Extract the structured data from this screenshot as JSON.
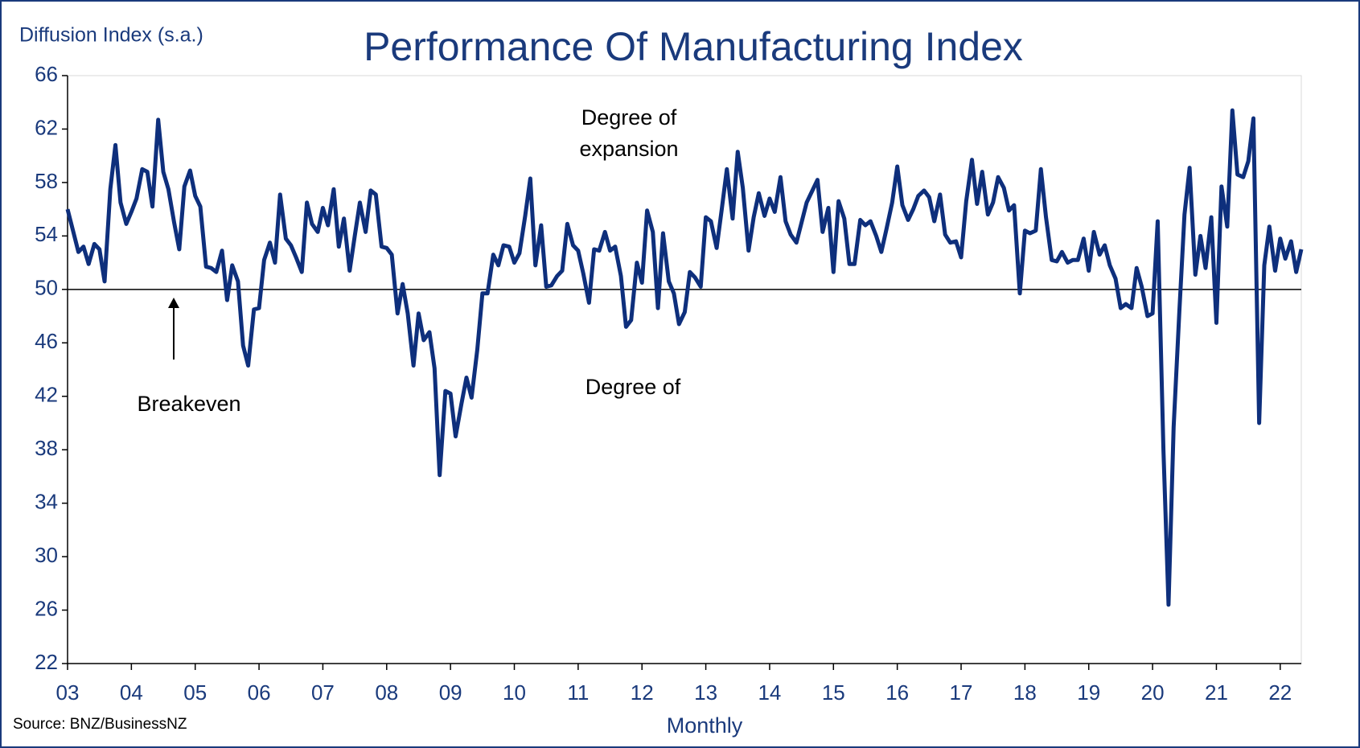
{
  "chart_data": {
    "type": "line",
    "title": "Performance Of Manufacturing Index",
    "y_label": "Diffusion Index (s.a.)",
    "x_label": "Monthly",
    "source": "Source: BNZ/BusinessNZ",
    "annotations": [
      "Degree of",
      "expansion",
      "Degree of",
      "Breakeven"
    ],
    "hline": 50,
    "xlim": [
      2003,
      2022.33
    ],
    "ylim": [
      22,
      66
    ],
    "yticks": [
      22,
      26,
      30,
      34,
      38,
      42,
      46,
      50,
      54,
      58,
      62,
      66
    ],
    "xticks": [
      {
        "value": 2003,
        "label": "03"
      },
      {
        "value": 2004,
        "label": "04"
      },
      {
        "value": 2005,
        "label": "05"
      },
      {
        "value": 2006,
        "label": "06"
      },
      {
        "value": 2007,
        "label": "07"
      },
      {
        "value": 2008,
        "label": "08"
      },
      {
        "value": 2009,
        "label": "09"
      },
      {
        "value": 2010,
        "label": "10"
      },
      {
        "value": 2011,
        "label": "11"
      },
      {
        "value": 2012,
        "label": "12"
      },
      {
        "value": 2013,
        "label": "13"
      },
      {
        "value": 2014,
        "label": "14"
      },
      {
        "value": 2015,
        "label": "15"
      },
      {
        "value": 2016,
        "label": "16"
      },
      {
        "value": 2017,
        "label": "17"
      },
      {
        "value": 2018,
        "label": "18"
      },
      {
        "value": 2019,
        "label": "19"
      },
      {
        "value": 2020,
        "label": "20"
      },
      {
        "value": 2021,
        "label": "21"
      },
      {
        "value": 2022,
        "label": "22"
      }
    ],
    "x": [
      2003,
      2003.08,
      2003.17,
      2003.25,
      2003.33,
      2003.42,
      2003.5,
      2003.58,
      2003.67,
      2003.75,
      2003.83,
      2003.92,
      2004,
      2004.08,
      2004.17,
      2004.25,
      2004.33,
      2004.42,
      2004.5,
      2004.58,
      2004.67,
      2004.75,
      2004.83,
      2004.92,
      2005,
      2005.08,
      2005.17,
      2005.25,
      2005.33,
      2005.42,
      2005.5,
      2005.58,
      2005.67,
      2005.75,
      2005.83,
      2005.92,
      2006,
      2006.08,
      2006.17,
      2006.25,
      2006.33,
      2006.42,
      2006.5,
      2006.58,
      2006.67,
      2006.75,
      2006.83,
      2006.92,
      2007,
      2007.08,
      2007.17,
      2007.25,
      2007.33,
      2007.42,
      2007.5,
      2007.58,
      2007.67,
      2007.75,
      2007.83,
      2007.92,
      2008,
      2008.08,
      2008.17,
      2008.25,
      2008.33,
      2008.42,
      2008.5,
      2008.58,
      2008.67,
      2008.75,
      2008.83,
      2008.92,
      2009,
      2009.08,
      2009.17,
      2009.25,
      2009.33,
      2009.42,
      2009.5,
      2009.58,
      2009.67,
      2009.75,
      2009.83,
      2009.92,
      2010,
      2010.08,
      2010.17,
      2010.25,
      2010.33,
      2010.42,
      2010.5,
      2010.58,
      2010.67,
      2010.75,
      2010.83,
      2010.92,
      2011,
      2011.08,
      2011.17,
      2011.25,
      2011.33,
      2011.42,
      2011.5,
      2011.58,
      2011.67,
      2011.75,
      2011.83,
      2011.92,
      2012,
      2012.08,
      2012.17,
      2012.25,
      2012.33,
      2012.42,
      2012.5,
      2012.58,
      2012.67,
      2012.75,
      2012.83,
      2012.92,
      2013,
      2013.08,
      2013.17,
      2013.25,
      2013.33,
      2013.42,
      2013.5,
      2013.58,
      2013.67,
      2013.75,
      2013.83,
      2013.92,
      2014,
      2014.08,
      2014.17,
      2014.25,
      2014.33,
      2014.42,
      2014.5,
      2014.58,
      2014.67,
      2014.75,
      2014.83,
      2014.92,
      2015,
      2015.08,
      2015.17,
      2015.25,
      2015.33,
      2015.42,
      2015.5,
      2015.58,
      2015.67,
      2015.75,
      2015.83,
      2015.92,
      2016,
      2016.08,
      2016.17,
      2016.25,
      2016.33,
      2016.42,
      2016.5,
      2016.58,
      2016.67,
      2016.75,
      2016.83,
      2016.92,
      2017,
      2017.08,
      2017.17,
      2017.25,
      2017.33,
      2017.42,
      2017.5,
      2017.58,
      2017.67,
      2017.75,
      2017.83,
      2017.92,
      2018,
      2018.08,
      2018.17,
      2018.25,
      2018.33,
      2018.42,
      2018.5,
      2018.58,
      2018.67,
      2018.75,
      2018.83,
      2018.92,
      2019,
      2019.08,
      2019.17,
      2019.25,
      2019.33,
      2019.42,
      2019.5,
      2019.58,
      2019.67,
      2019.75,
      2019.83,
      2019.92,
      2020,
      2020.08,
      2020.17,
      2020.25,
      2020.33,
      2020.42,
      2020.5,
      2020.58,
      2020.67,
      2020.75,
      2020.83,
      2020.92,
      2021,
      2021.08,
      2021.17,
      2021.25,
      2021.33,
      2021.42,
      2021.5,
      2021.58,
      2021.67,
      2021.75,
      2021.83,
      2021.92,
      2022,
      2022.08,
      2022.17,
      2022.25,
      2022.33
    ],
    "series": [
      {
        "color": "#0e2f7c",
        "values": [
          56,
          54.5,
          52.8,
          53.2,
          51.9,
          53.4,
          53,
          50.6,
          57.5,
          60.8,
          56.5,
          54.9,
          55.8,
          56.8,
          59,
          58.8,
          56.2,
          62.7,
          58.8,
          57.5,
          55,
          53,
          57.7,
          58.9,
          57,
          56.2,
          51.7,
          51.6,
          51.3,
          52.9,
          49.2,
          51.8,
          50.6,
          45.8,
          44.3,
          48.5,
          48.6,
          52.2,
          53.5,
          52,
          57.1,
          53.8,
          53.3,
          52.4,
          51.3,
          56.5,
          54.9,
          54.3,
          56.1,
          54.8,
          57.5,
          53.2,
          55.3,
          51.4,
          54,
          56.5,
          54.3,
          57.4,
          57.1,
          53.2,
          53.1,
          52.6,
          48.2,
          50.4,
          48.2,
          44.3,
          48.2,
          46.2,
          46.8,
          44.1,
          36.1,
          42.4,
          42.2,
          39,
          41.4,
          43.4,
          41.9,
          45.5,
          49.7,
          49.7,
          52.6,
          51.8,
          53.3,
          53.2,
          52,
          52.7,
          55.5,
          58.3,
          51.8,
          54.8,
          50.2,
          50.3,
          51,
          51.4,
          54.9,
          53.3,
          52.9,
          51.2,
          49,
          53,
          52.9,
          54.3,
          52.9,
          53.2,
          51,
          47.2,
          47.7,
          52,
          50.5,
          55.9,
          54.3,
          48.6,
          54.2,
          50.6,
          49.7,
          47.4,
          48.3,
          51.3,
          50.9,
          50.2,
          55.4,
          55.1,
          53.1,
          56,
          59,
          55.3,
          60.3,
          57.6,
          52.9,
          55.4,
          57.2,
          55.5,
          56.8,
          55.8,
          58.4,
          55.1,
          54.1,
          53.5,
          55,
          56.5,
          57.4,
          58.2,
          54.3,
          56.1,
          51.3,
          56.6,
          55.3,
          51.9,
          51.9,
          55.2,
          54.8,
          55.1,
          54,
          52.8,
          54.5,
          56.5,
          59.2,
          56.3,
          55.2,
          56,
          57,
          57.4,
          56.9,
          55.1,
          57.1,
          54.1,
          53.5,
          53.6,
          52.4,
          56.6,
          59.7,
          56.4,
          58.8,
          55.6,
          56.5,
          58.4,
          57.6,
          55.9,
          56.3,
          49.7,
          54.4,
          54.2,
          54.4,
          59,
          55.4,
          52.2,
          52.1,
          52.8,
          52,
          52.2,
          52.2,
          53.8,
          51.4,
          54.3,
          52.6,
          53.3,
          51.8,
          50.8,
          48.6,
          48.9,
          48.6,
          51.6,
          50.2,
          48,
          48.2,
          55.1,
          38,
          26.4,
          39.7,
          48.4,
          55.6,
          59.1,
          51.1,
          54,
          51.6,
          55.4,
          47.5,
          57.7,
          54.7,
          63.4,
          58.6,
          58.4,
          59.6,
          62.8,
          40,
          51.8,
          54.7,
          51.4,
          53.8,
          52.3,
          53.6,
          51.3,
          53
        ]
      }
    ]
  }
}
